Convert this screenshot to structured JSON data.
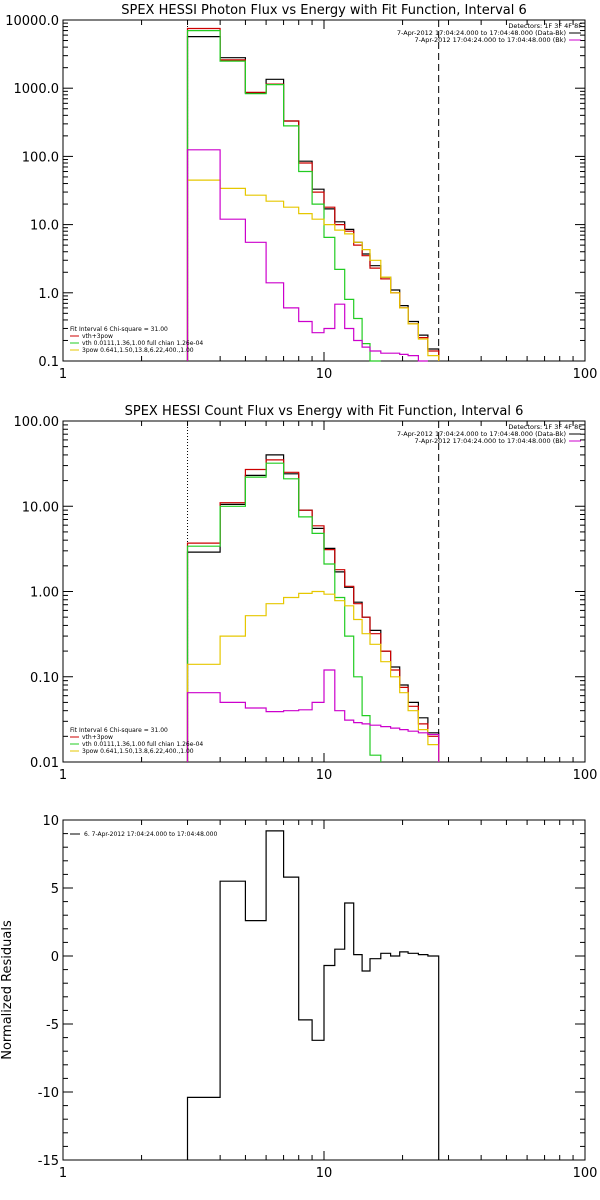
{
  "chart_data": [
    {
      "type": "line",
      "title": "SPEX HESSI Photon Flux vs Energy with Fit Function, Interval 6",
      "xlabel": "",
      "ylabel": "",
      "xscale": "log",
      "yscale": "log",
      "xlim": [
        1,
        100
      ],
      "ylim": [
        0.1,
        10000
      ],
      "xticks": [
        1,
        10,
        100
      ],
      "xtick_labels": [
        "1",
        "10",
        "100"
      ],
      "yticks": [
        0.1,
        1,
        10,
        100,
        1000,
        10000
      ],
      "ytick_labels": [
        "0.1",
        "1.0",
        "10.0",
        "100.0",
        "1000.0",
        "10000.0"
      ],
      "grid": false,
      "energy_edges": [
        3,
        4,
        5,
        6,
        7,
        8,
        9,
        10,
        11,
        12,
        13,
        14,
        15,
        16.5,
        18,
        19.5,
        21,
        23,
        25,
        27.5
      ],
      "fit_range_markers": [
        3,
        27.5
      ],
      "series": [
        {
          "name": "",
          "color": "#000000",
          "values": [
            5700,
            2800,
            850,
            1350,
            330,
            85,
            33,
            17,
            11,
            8.5,
            5.5,
            3.7,
            2.5,
            1.7,
            1.1,
            0.65,
            0.38,
            0.24,
            0.15
          ]
        },
        {
          "name": "",
          "color": "#cc0000",
          "values": [
            7500,
            2600,
            870,
            1150,
            330,
            80,
            30,
            18,
            10,
            8.0,
            5.0,
            3.5,
            2.3,
            1.6,
            1.0,
            0.6,
            0.35,
            0.22,
            0.14
          ]
        },
        {
          "name": "vth",
          "color": "#22cc22",
          "values": [
            7000,
            2500,
            830,
            1130,
            280,
            60,
            20,
            6.5,
            2.2,
            0.8,
            0.42,
            0.18,
            0.1
          ]
        },
        {
          "name": "3pow",
          "color": "#e6c700",
          "values": [
            45,
            34,
            27,
            22,
            18,
            14.5,
            12,
            10,
            8.3,
            7.3,
            5.5,
            4.3,
            3.0,
            1.7,
            1.0,
            0.6,
            0.35,
            0.21,
            0.12
          ]
        },
        {
          "name": "",
          "color": "#cc00cc",
          "values": [
            125,
            12,
            5.5,
            1.4,
            0.6,
            0.38,
            0.26,
            0.3,
            0.68,
            0.3,
            0.2,
            0.16,
            0.14,
            0.13,
            0.13,
            0.125,
            0.12,
            0.1
          ]
        }
      ],
      "legend_location": "lower-left",
      "legend": {
        "header": "Fit Interval 6   Chi-square = 31.00",
        "entries": [
          {
            "text": "vth+3pow",
            "color": "#cc0000"
          },
          {
            "text": "vth 0.0111,1.36,1.00  full chian 1.26e-04",
            "color": "#22cc22"
          },
          {
            "text": "3pow 0.641,1.50,13.8,6.22,400.,1.00",
            "color": "#e6c700"
          }
        ]
      },
      "info": {
        "detectors": "Detectors: 1F 3F 4F 8F",
        "lines": [
          {
            "text": "7-Apr-2012 17:04:24.000 to 17:04:48.000 (Data-Bk)",
            "color": "#000000"
          },
          {
            "text": "7-Apr-2012 17:04:24.000 to 17:04:48.000 (Bk)",
            "color": "#cc00cc"
          }
        ]
      }
    },
    {
      "type": "line",
      "title": "SPEX HESSI Count Flux vs Energy with Fit Function, Interval 6",
      "xlabel": "",
      "ylabel": "",
      "xscale": "log",
      "yscale": "log",
      "xlim": [
        1,
        100
      ],
      "ylim": [
        0.01,
        100
      ],
      "xticks": [
        1,
        10,
        100
      ],
      "xtick_labels": [
        "1",
        "10",
        "100"
      ],
      "yticks": [
        0.01,
        0.1,
        1,
        10,
        100
      ],
      "ytick_labels": [
        "0.01",
        "0.10",
        "1.00",
        "10.00",
        "100.00"
      ],
      "grid": false,
      "energy_edges": [
        3,
        4,
        5,
        6,
        7,
        8,
        9,
        10,
        11,
        12,
        13,
        14,
        15,
        16.5,
        18,
        19.5,
        21,
        23,
        25,
        27.5
      ],
      "fit_range_markers": [
        3,
        27.5
      ],
      "series": [
        {
          "name": "",
          "color": "#000000",
          "values": [
            2.9,
            10.5,
            23,
            40,
            24,
            9,
            5.5,
            3.2,
            1.7,
            1.12,
            0.75,
            0.5,
            0.35,
            0.2,
            0.13,
            0.08,
            0.05,
            0.033,
            0.022
          ]
        },
        {
          "name": "",
          "color": "#cc0000",
          "values": [
            3.7,
            11,
            27,
            35,
            25,
            9,
            5.9,
            3.1,
            1.8,
            1.15,
            0.72,
            0.5,
            0.32,
            0.2,
            0.12,
            0.075,
            0.045,
            0.028,
            0.02
          ]
        },
        {
          "name": "vth",
          "color": "#22cc22",
          "values": [
            3.4,
            10,
            22,
            32,
            21,
            7.5,
            4.8,
            2.1,
            0.85,
            0.3,
            0.1,
            0.035,
            0.012
          ]
        },
        {
          "name": "3pow",
          "color": "#e6c700",
          "values": [
            0.14,
            0.3,
            0.52,
            0.72,
            0.85,
            0.95,
            1.0,
            0.93,
            0.78,
            0.68,
            0.47,
            0.32,
            0.24,
            0.15,
            0.1,
            0.065,
            0.04,
            0.024,
            0.016
          ]
        },
        {
          "name": "",
          "color": "#cc00cc",
          "values": [
            0.065,
            0.05,
            0.043,
            0.039,
            0.04,
            0.041,
            0.05,
            0.12,
            0.04,
            0.031,
            0.029,
            0.028,
            0.027,
            0.026,
            0.025,
            0.024,
            0.023,
            0.022,
            0.021
          ]
        }
      ],
      "legend_location": "lower-left",
      "legend": {
        "header": "Fit Interval 6   Chi-square = 31.00",
        "entries": [
          {
            "text": "vth+3pow",
            "color": "#cc0000"
          },
          {
            "text": "vth 0.0111,1.36,1.00  full chian 1.26e-04",
            "color": "#22cc22"
          },
          {
            "text": "3pow 0.641,1.50,13.8,6.22,400.,1.00",
            "color": "#e6c700"
          }
        ]
      },
      "info": {
        "detectors": "Detectors: 1F 3F 4F 8F",
        "lines": [
          {
            "text": "7-Apr-2012 17:04:24.000 to 17:04:48.000 (Data-Bk)",
            "color": "#000000"
          },
          {
            "text": "7-Apr-2012 17:04:24.000 to 17:04:48.000 (Bk)",
            "color": "#cc00cc"
          }
        ]
      }
    },
    {
      "type": "line",
      "title": "",
      "xlabel": "",
      "ylabel": "Normalized Residuals",
      "xscale": "log",
      "yscale": "linear",
      "xlim": [
        1,
        100
      ],
      "ylim": [
        -15,
        10
      ],
      "xticks": [
        1,
        10,
        100
      ],
      "xtick_labels": [
        "1",
        "10",
        "100"
      ],
      "yticks": [
        -15,
        -10,
        -5,
        0,
        5,
        10
      ],
      "ytick_labels": [
        "-15",
        "-10",
        "-5",
        "0",
        "5",
        "10"
      ],
      "grid": false,
      "energy_edges": [
        3,
        4,
        5,
        6,
        7,
        8,
        9,
        10,
        11,
        12,
        13,
        14,
        15,
        16.5,
        18,
        19.5,
        21,
        23,
        25,
        27.5
      ],
      "series": [
        {
          "name": "6.  7-Apr-2012 17:04:24.000 to 17:04:48.000",
          "color": "#000000",
          "values": [
            -10.4,
            5.5,
            2.6,
            9.2,
            5.8,
            -4.7,
            -6.2,
            -0.7,
            0.5,
            3.9,
            0.1,
            -1.1,
            -0.2,
            0.2,
            0.0,
            0.3,
            0.2,
            0.1,
            0.0
          ]
        }
      ],
      "legend_location": "top-left",
      "legend": {
        "header": "",
        "entries": [
          {
            "text": "6.  7-Apr-2012 17:04:24.000 to 17:04:48.000",
            "color": "#000000"
          }
        ]
      }
    }
  ]
}
